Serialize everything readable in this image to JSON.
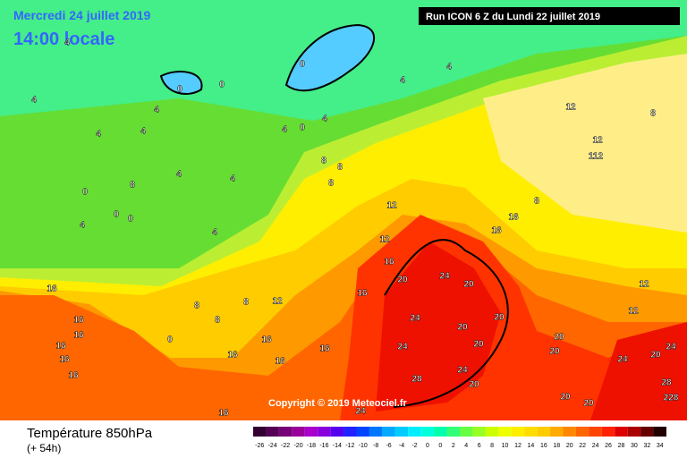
{
  "header": {
    "date": "Mercredi 24 juillet 2019",
    "time": "14:00 locale",
    "run": "Run ICON 6 Z du Lundi 22 juillet 2019",
    "copyright": "Copyright © 2019 Meteociel.fr"
  },
  "footer": {
    "title": "Température 850hPa",
    "lead": "(+ 54h)"
  },
  "legend": {
    "labels": [
      "-26",
      "-24",
      "-22",
      "-20",
      "-18",
      "-16",
      "-14",
      "-12",
      "-10",
      "-8",
      "-6",
      "-4",
      "-2",
      "0",
      "0",
      "2",
      "4",
      "6",
      "8",
      "10",
      "12",
      "14",
      "16",
      "18",
      "20",
      "22",
      "24",
      "26",
      "28",
      "30",
      "32",
      "34"
    ],
    "colors": [
      "#330033",
      "#550055",
      "#770077",
      "#990099",
      "#aa00cc",
      "#8800dd",
      "#5500ee",
      "#2222ff",
      "#0044ff",
      "#0077ff",
      "#00aaff",
      "#00ccff",
      "#00eeff",
      "#00ffdd",
      "#00ffaa",
      "#33ff77",
      "#66ff44",
      "#99ff22",
      "#ccff00",
      "#eeff00",
      "#ffee00",
      "#ffdd00",
      "#ffcc00",
      "#ffaa00",
      "#ff8800",
      "#ff6600",
      "#ff4400",
      "#ff2200",
      "#dd0000",
      "#aa0000",
      "#660000",
      "#220000"
    ]
  },
  "map_labels": [
    4,
    0,
    0,
    0,
    4,
    4,
    4,
    4,
    4,
    4,
    4,
    0,
    4,
    12,
    8,
    12,
    112,
    8,
    8,
    8,
    4,
    4,
    8,
    0,
    0,
    0,
    4,
    4,
    12,
    12,
    16,
    16,
    8,
    16,
    20,
    24,
    20,
    16,
    12,
    16,
    16,
    16,
    16,
    16,
    16,
    8,
    8,
    8,
    0,
    16,
    16,
    16,
    16,
    24,
    20,
    20,
    24,
    20,
    20,
    20,
    24,
    24,
    20,
    28,
    24,
    20,
    20,
    28,
    228,
    20,
    12,
    12,
    24,
    16
  ]
}
